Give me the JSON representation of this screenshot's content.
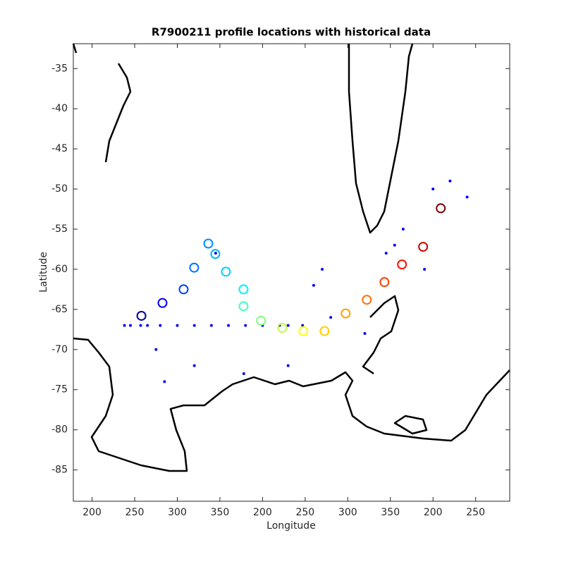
{
  "chart_data": {
    "type": "scatter",
    "title": "R7900211 profile locations with historical data",
    "x_label": "Longitude",
    "y_label": "Latitude",
    "xlim": [
      178,
      690
    ],
    "ylim": [
      -88.9,
      -31.9
    ],
    "xticks": [
      {
        "value": 200,
        "label": "200"
      },
      {
        "value": 250,
        "label": "250"
      },
      {
        "value": 300,
        "label": "300"
      },
      {
        "value": 350,
        "label": "350"
      },
      {
        "value": 400,
        "label": "200"
      },
      {
        "value": 450,
        "label": "250"
      },
      {
        "value": 500,
        "label": "300"
      },
      {
        "value": 550,
        "label": "350"
      },
      {
        "value": 600,
        "label": "200"
      },
      {
        "value": 650,
        "label": "250"
      }
    ],
    "yticks": [
      -35,
      -40,
      -45,
      -50,
      -55,
      -60,
      -65,
      -70,
      -75,
      -80,
      -85
    ],
    "series": [
      {
        "color": "#0000ff",
        "size": 2,
        "x": [
          238,
          245,
          257,
          265,
          280,
          300,
          320,
          340,
          360,
          380,
          400,
          420,
          430,
          447,
          460,
          470,
          480,
          520,
          545,
          565,
          600,
          620,
          640,
          555,
          590,
          275,
          285,
          320,
          345,
          378,
          430
        ],
        "y": [
          -67,
          -67,
          -67,
          -67,
          -67,
          -67,
          -67,
          -67,
          -67,
          -67,
          -67,
          -67,
          -67,
          -67,
          -62,
          -60,
          -66,
          -68,
          -58,
          -55,
          -50,
          -49,
          -51,
          -57,
          -60,
          -70,
          -74,
          -72,
          -58,
          -73,
          -72
        ]
      },
      {
        "size": 6,
        "colors": [
          "#00008f",
          "#0000ff",
          "#0040ff",
          "#0070ff",
          "#0090ff",
          "#00b0ff",
          "#00d0ff",
          "#00f0ff",
          "#40ffc0",
          "#80ff80",
          "#c0ff40",
          "#ffff00",
          "#ffd000",
          "#ffa000",
          "#ff7000",
          "#ff4000",
          "#ff1000",
          "#d00000",
          "#800000"
        ],
        "x": [
          257.9,
          282.6,
          307.4,
          319.8,
          336.4,
          344.6,
          357.0,
          377.7,
          377.7,
          398.3,
          423.1,
          447.9,
          472.7,
          497.5,
          522.3,
          543.0,
          563.6,
          588.4,
          609.1
        ],
        "y": [
          -65.8,
          -64.2,
          -62.5,
          -59.8,
          -56.8,
          -58.1,
          -60.3,
          -62.5,
          -64.6,
          -66.4,
          -67.3,
          -67.7,
          -67.7,
          -65.5,
          -63.8,
          -61.6,
          -59.4,
          -57.2,
          -52.4
        ]
      }
    ]
  }
}
